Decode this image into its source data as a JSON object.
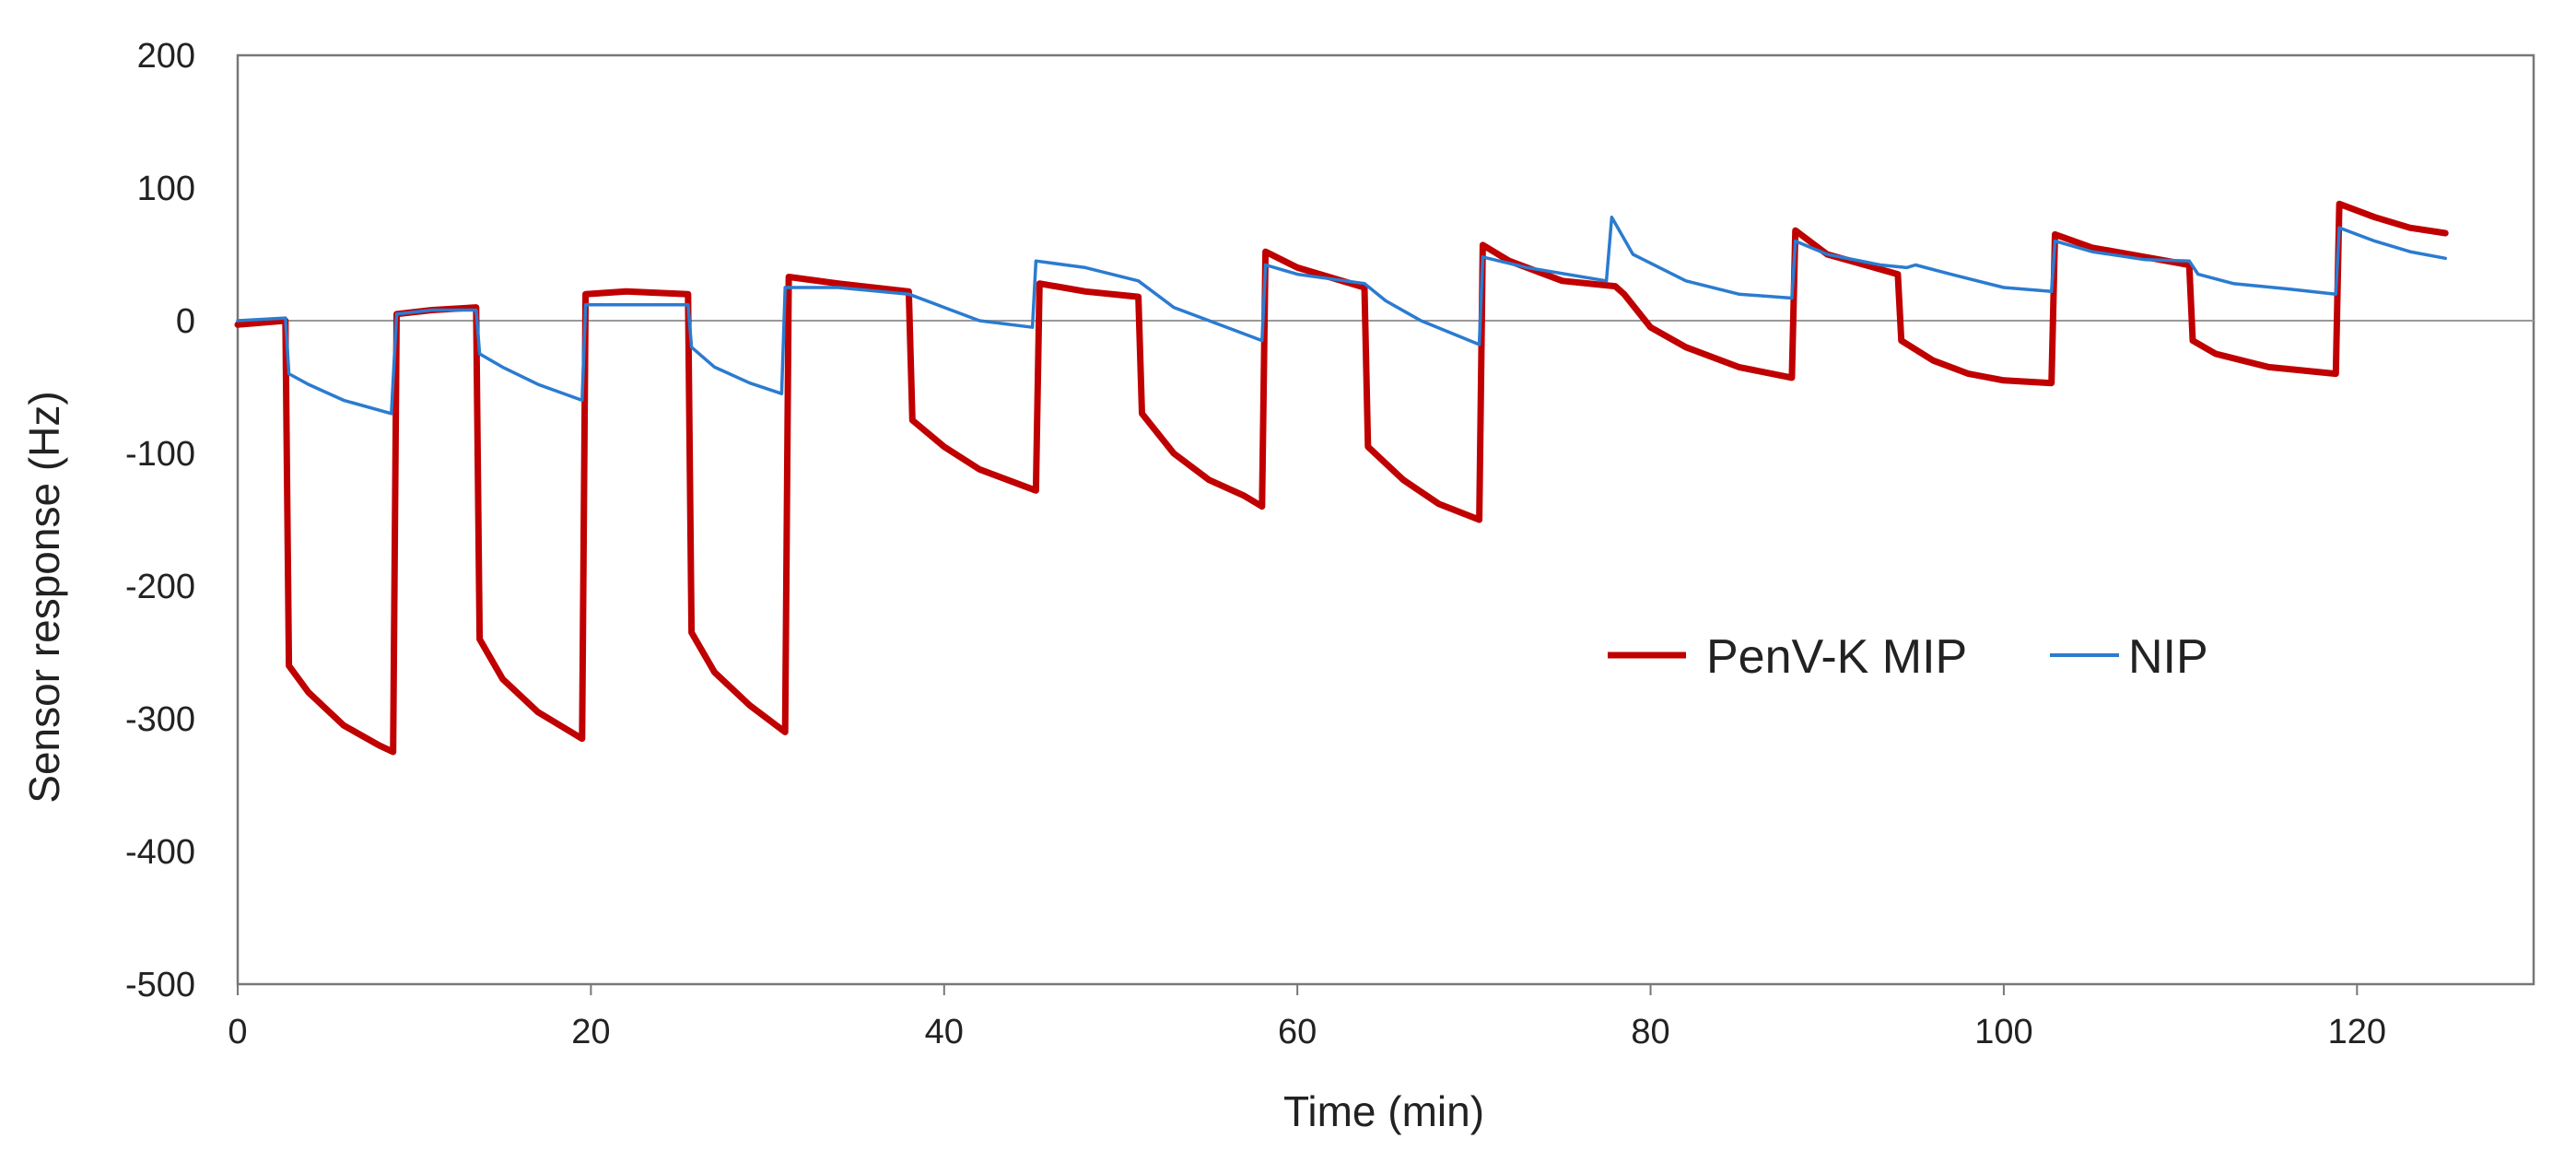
{
  "chart_data": {
    "type": "line",
    "title": "",
    "xlabel": "Time (min)",
    "ylabel": "Sensor response (Hz)",
    "xlim": [
      0,
      130
    ],
    "ylim": [
      -500,
      200
    ],
    "xticks": [
      0,
      20,
      40,
      60,
      80,
      100,
      120
    ],
    "yticks": [
      200,
      100,
      0,
      -100,
      -200,
      -300,
      -400,
      -500
    ],
    "grid": false,
    "zero_line": true,
    "legend_position": "center-right",
    "series": [
      {
        "name": "PenV-K MIP",
        "color": "#c00000",
        "points": [
          [
            0,
            -3
          ],
          [
            2.7,
            0
          ],
          [
            2.9,
            -260
          ],
          [
            4,
            -280
          ],
          [
            6,
            -305
          ],
          [
            8,
            -320
          ],
          [
            8.8,
            -325
          ],
          [
            9,
            5
          ],
          [
            11,
            8
          ],
          [
            13.5,
            10
          ],
          [
            13.7,
            -240
          ],
          [
            15,
            -270
          ],
          [
            17,
            -295
          ],
          [
            19.5,
            -315
          ],
          [
            19.7,
            20
          ],
          [
            22,
            22
          ],
          [
            25.5,
            20
          ],
          [
            25.7,
            -235
          ],
          [
            27,
            -265
          ],
          [
            29,
            -290
          ],
          [
            31,
            -310
          ],
          [
            31.2,
            33
          ],
          [
            34,
            28
          ],
          [
            38,
            22
          ],
          [
            38.2,
            -75
          ],
          [
            40,
            -95
          ],
          [
            42,
            -112
          ],
          [
            44,
            -122
          ],
          [
            45.2,
            -128
          ],
          [
            45.4,
            28
          ],
          [
            48,
            22
          ],
          [
            51,
            18
          ],
          [
            51.2,
            -70
          ],
          [
            53,
            -100
          ],
          [
            55,
            -120
          ],
          [
            57,
            -132
          ],
          [
            58,
            -140
          ],
          [
            58.2,
            52
          ],
          [
            60,
            40
          ],
          [
            63.8,
            25
          ],
          [
            64,
            -95
          ],
          [
            66,
            -120
          ],
          [
            68,
            -138
          ],
          [
            70.3,
            -150
          ],
          [
            70.5,
            57
          ],
          [
            72,
            45
          ],
          [
            75,
            30
          ],
          [
            78,
            26
          ],
          [
            78.5,
            20
          ],
          [
            80,
            -5
          ],
          [
            82,
            -20
          ],
          [
            85,
            -35
          ],
          [
            88,
            -43
          ],
          [
            88.2,
            68
          ],
          [
            90,
            50
          ],
          [
            94,
            35
          ],
          [
            94.2,
            -15
          ],
          [
            96,
            -30
          ],
          [
            98,
            -40
          ],
          [
            100,
            -45
          ],
          [
            102.7,
            -47
          ],
          [
            102.9,
            65
          ],
          [
            105,
            55
          ],
          [
            108,
            48
          ],
          [
            110.5,
            42
          ],
          [
            110.7,
            -15
          ],
          [
            112,
            -25
          ],
          [
            115,
            -35
          ],
          [
            118.8,
            -40
          ],
          [
            119,
            88
          ],
          [
            121,
            78
          ],
          [
            123,
            70
          ],
          [
            125,
            66
          ]
        ]
      },
      {
        "name": "NIP",
        "color": "#2b7bd0",
        "points": [
          [
            0,
            0
          ],
          [
            2.7,
            2
          ],
          [
            2.9,
            -40
          ],
          [
            4,
            -48
          ],
          [
            6,
            -60
          ],
          [
            8.7,
            -70
          ],
          [
            9,
            5
          ],
          [
            11,
            8
          ],
          [
            13.5,
            8
          ],
          [
            13.7,
            -25
          ],
          [
            15,
            -35
          ],
          [
            17,
            -48
          ],
          [
            19.5,
            -60
          ],
          [
            19.7,
            12
          ],
          [
            22,
            12
          ],
          [
            25.5,
            12
          ],
          [
            25.7,
            -20
          ],
          [
            27,
            -35
          ],
          [
            29,
            -47
          ],
          [
            30.8,
            -55
          ],
          [
            31,
            25
          ],
          [
            34,
            25
          ],
          [
            38,
            20
          ],
          [
            40,
            10
          ],
          [
            42,
            0
          ],
          [
            45,
            -5
          ],
          [
            45.2,
            45
          ],
          [
            48,
            40
          ],
          [
            51,
            30
          ],
          [
            53,
            10
          ],
          [
            55,
            0
          ],
          [
            58,
            -15
          ],
          [
            58.2,
            42
          ],
          [
            60,
            35
          ],
          [
            63.8,
            28
          ],
          [
            65,
            15
          ],
          [
            67,
            0
          ],
          [
            70.3,
            -18
          ],
          [
            70.5,
            48
          ],
          [
            73,
            40
          ],
          [
            77.5,
            30
          ],
          [
            77.8,
            78
          ],
          [
            79,
            50
          ],
          [
            82,
            30
          ],
          [
            85,
            20
          ],
          [
            88,
            17
          ],
          [
            88.2,
            60
          ],
          [
            90,
            50
          ],
          [
            93,
            42
          ],
          [
            94.5,
            40
          ],
          [
            95,
            42
          ],
          [
            97,
            35
          ],
          [
            100,
            25
          ],
          [
            102.7,
            22
          ],
          [
            102.9,
            60
          ],
          [
            105,
            52
          ],
          [
            108,
            46
          ],
          [
            110.5,
            45
          ],
          [
            111,
            35
          ],
          [
            113,
            28
          ],
          [
            116,
            24
          ],
          [
            118.8,
            20
          ],
          [
            119,
            70
          ],
          [
            121,
            60
          ],
          [
            123,
            52
          ],
          [
            125,
            47
          ]
        ]
      }
    ]
  }
}
